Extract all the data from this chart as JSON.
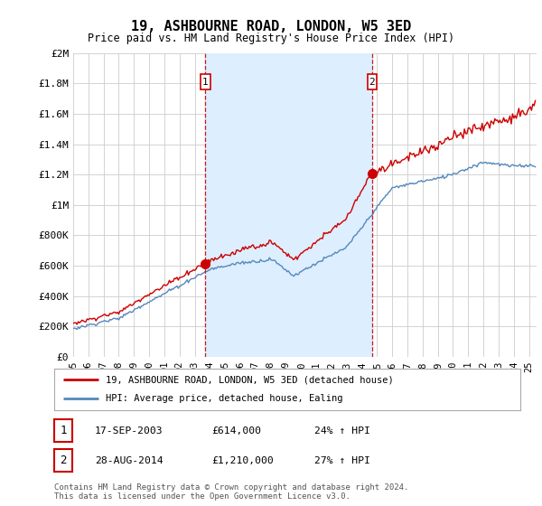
{
  "title": "19, ASHBOURNE ROAD, LONDON, W5 3ED",
  "subtitle": "Price paid vs. HM Land Registry's House Price Index (HPI)",
  "ylabel_ticks": [
    "£0",
    "£200K",
    "£400K",
    "£600K",
    "£800K",
    "£1M",
    "£1.2M",
    "£1.4M",
    "£1.6M",
    "£1.8M",
    "£2M"
  ],
  "ytick_vals": [
    0,
    200000,
    400000,
    600000,
    800000,
    1000000,
    1200000,
    1400000,
    1600000,
    1800000,
    2000000
  ],
  "ylim": [
    0,
    2000000
  ],
  "xlim_start": 1995.0,
  "xlim_end": 2025.5,
  "hpi_line_color": "#5588bb",
  "hpi_fill_color": "#ddeeff",
  "price_line_color": "#cc0000",
  "marker1_x": 2003.71,
  "marker1_y": 614000,
  "marker2_x": 2014.66,
  "marker2_y": 1210000,
  "marker1_label": "1",
  "marker2_label": "2",
  "vline_color": "#cc0000",
  "legend_line1": "19, ASHBOURNE ROAD, LONDON, W5 3ED (detached house)",
  "legend_line2": "HPI: Average price, detached house, Ealing",
  "table_row1": [
    "1",
    "17-SEP-2003",
    "£614,000",
    "24% ↑ HPI"
  ],
  "table_row2": [
    "2",
    "28-AUG-2014",
    "£1,210,000",
    "27% ↑ HPI"
  ],
  "footnote": "Contains HM Land Registry data © Crown copyright and database right 2024.\nThis data is licensed under the Open Government Licence v3.0.",
  "bg_color": "#ffffff",
  "grid_color": "#cccccc"
}
